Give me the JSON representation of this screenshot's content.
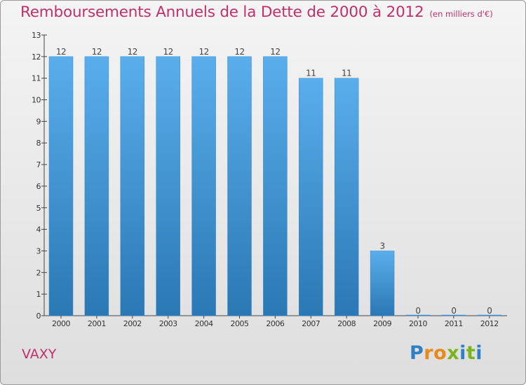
{
  "header": {
    "title": "Remboursements Annuels de la Dette de 2000 à 2012",
    "unit": "(en milliers d'€)"
  },
  "footer": {
    "place": "VAXY",
    "logo_letters": [
      "P",
      "r",
      "o",
      "x",
      "i",
      "t",
      "i"
    ]
  },
  "colors": {
    "accent": "#c0306a",
    "bar_top": "#5aaeec",
    "bar_bottom": "#2a78b4",
    "logo": [
      "#2f7fc4",
      "#e8891c",
      "#e8891c",
      "#7ab51d",
      "#2f7fc4",
      "#7ab51d",
      "#2f7fc4"
    ]
  },
  "chart_data": {
    "type": "bar",
    "categories": [
      "2000",
      "2001",
      "2002",
      "2003",
      "2004",
      "2005",
      "2006",
      "2007",
      "2008",
      "2009",
      "2010",
      "2011",
      "2012"
    ],
    "values": [
      12,
      12,
      12,
      12,
      12,
      12,
      12,
      11,
      11,
      3,
      0,
      0,
      0
    ],
    "title": "Remboursements Annuels de la Dette de 2000 à 2012",
    "xlabel": "",
    "ylabel": "",
    "ylim": [
      0,
      13
    ],
    "yticks": [
      0,
      1,
      2,
      3,
      4,
      5,
      6,
      7,
      8,
      9,
      10,
      11,
      12,
      13
    ],
    "grid": false,
    "data_labels": true
  }
}
